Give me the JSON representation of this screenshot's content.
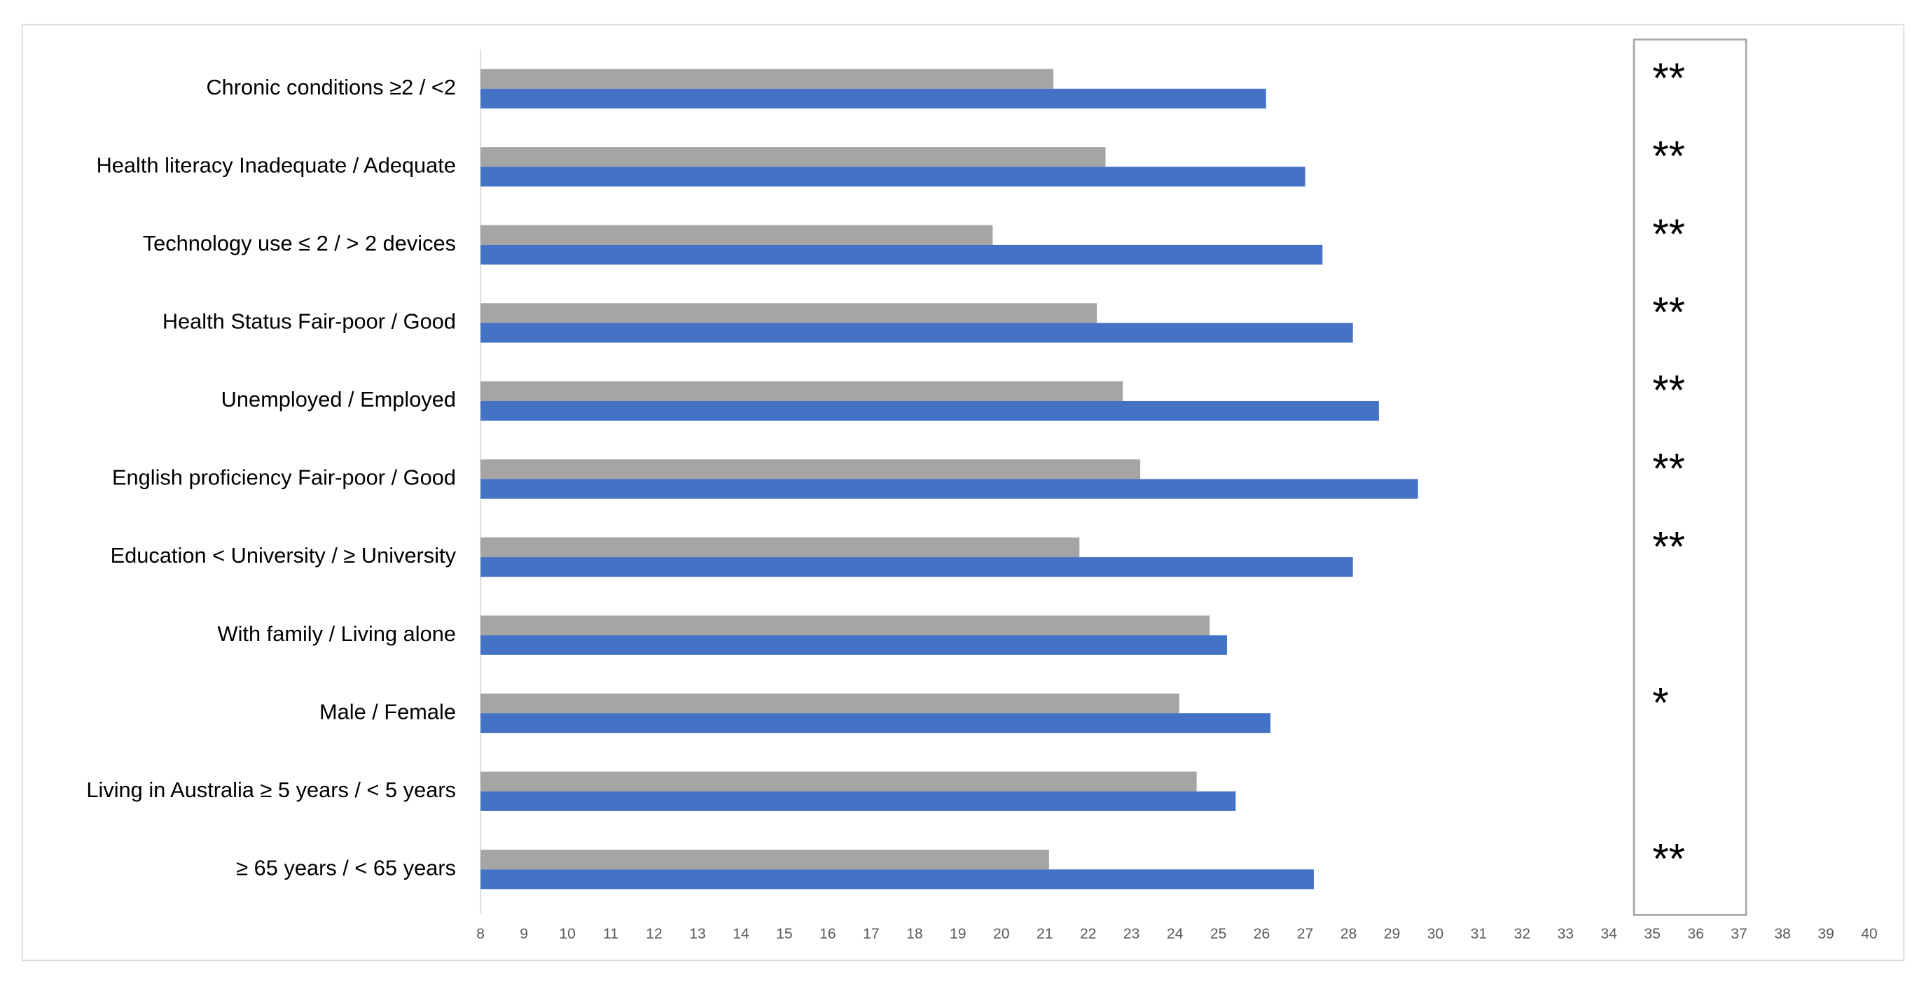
{
  "chart_data": {
    "type": "bar",
    "orientation": "horizontal",
    "categories": [
      "Chronic conditions ≥2 / <2",
      "Health literacy Inadequate / Adequate",
      "Technology use ≤ 2 / > 2 devices",
      "Health Status Fair-poor / Good",
      "Unemployed / Employed",
      "English proficiency Fair-poor / Good",
      "Education < University / ≥ University",
      "With family / Living alone",
      "Male / Female",
      "Living in Australia ≥ 5 years / < 5 years",
      "≥ 65 years / < 65 years"
    ],
    "series": [
      {
        "color": "#a5a5a5",
        "values": [
          21.2,
          22.4,
          19.8,
          22.2,
          22.8,
          23.2,
          21.8,
          24.8,
          24.1,
          24.5,
          21.1
        ]
      },
      {
        "color": "#4472c4",
        "values": [
          26.1,
          27.0,
          27.4,
          28.1,
          28.7,
          29.6,
          28.1,
          25.2,
          26.2,
          25.4,
          27.2
        ]
      }
    ],
    "significance": [
      "**",
      "**",
      "**",
      "**",
      "**",
      "**",
      "**",
      null,
      "*",
      null,
      "**"
    ],
    "xlim": [
      8,
      40
    ],
    "xticks": [
      8,
      9,
      10,
      11,
      12,
      13,
      14,
      15,
      16,
      17,
      18,
      19,
      20,
      21,
      22,
      23,
      24,
      25,
      26,
      27,
      28,
      29,
      30,
      31,
      32,
      33,
      34,
      35,
      36,
      37,
      38,
      39,
      40
    ]
  }
}
